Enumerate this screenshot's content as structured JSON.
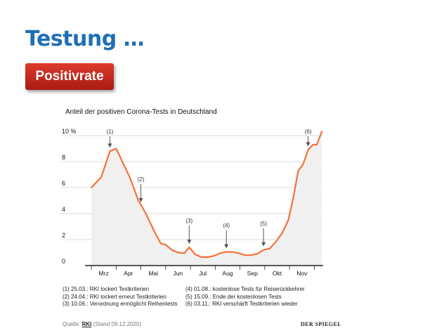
{
  "slide": {
    "title": "Testung …",
    "badge": "Positivrate"
  },
  "chart_data": {
    "type": "area",
    "title": "Anteil der positiven Corona-Tests in Deutschland",
    "xlabel": "",
    "ylabel": "",
    "unit": "%",
    "ylim": [
      0,
      10
    ],
    "xlim": [
      0,
      9.3
    ],
    "yticks": [
      0,
      2,
      4,
      6,
      8,
      10
    ],
    "ytick_labels": [
      "0",
      "2",
      "4",
      "6",
      "8",
      "10 %"
    ],
    "month_labels": [
      "Mrz",
      "Apr",
      "Mai",
      "Jun",
      "Jul",
      "Aug",
      "Sep",
      "Okt",
      "Nov"
    ],
    "grid": true,
    "colors": {
      "line": "#f4713a",
      "fill": "#f0f0f0",
      "grid": "#cfcfcf",
      "axis": "#222222",
      "arrow": "#555555"
    },
    "series": [
      {
        "values": [
          [
            0.0,
            6.0
          ],
          [
            0.4,
            6.8
          ],
          [
            0.75,
            8.8
          ],
          [
            1.0,
            9.0
          ],
          [
            1.25,
            8.0
          ],
          [
            1.55,
            6.8
          ],
          [
            1.9,
            5.0
          ],
          [
            2.2,
            4.0
          ],
          [
            2.55,
            2.6
          ],
          [
            2.8,
            1.7
          ],
          [
            3.0,
            1.6
          ],
          [
            3.25,
            1.2
          ],
          [
            3.5,
            1.0
          ],
          [
            3.75,
            0.95
          ],
          [
            3.95,
            1.4
          ],
          [
            4.2,
            0.85
          ],
          [
            4.45,
            0.65
          ],
          [
            4.7,
            0.65
          ],
          [
            4.95,
            0.75
          ],
          [
            5.2,
            0.95
          ],
          [
            5.45,
            1.05
          ],
          [
            5.7,
            1.05
          ],
          [
            5.95,
            0.95
          ],
          [
            6.2,
            0.8
          ],
          [
            6.45,
            0.8
          ],
          [
            6.7,
            0.9
          ],
          [
            6.95,
            1.2
          ],
          [
            7.2,
            1.3
          ],
          [
            7.45,
            1.85
          ],
          [
            7.7,
            2.5
          ],
          [
            7.95,
            3.5
          ],
          [
            8.15,
            5.2
          ],
          [
            8.35,
            7.3
          ],
          [
            8.55,
            7.8
          ],
          [
            8.75,
            8.9
          ],
          [
            8.95,
            9.3
          ],
          [
            9.1,
            9.3
          ],
          [
            9.3,
            10.3
          ]
        ]
      }
    ],
    "annotations": [
      {
        "id": "(1)",
        "x": 0.75,
        "y": 8.8
      },
      {
        "id": "(2)",
        "x": 2.0,
        "y": 4.6
      },
      {
        "id": "(3)",
        "x": 3.95,
        "y": 1.4
      },
      {
        "id": "(4)",
        "x": 5.45,
        "y": 1.05
      },
      {
        "id": "(5)",
        "x": 6.95,
        "y": 1.2
      },
      {
        "id": "(6)",
        "x": 8.75,
        "y": 8.9
      }
    ]
  },
  "footnotes": {
    "left": [
      "(1) 25.03.: RKI lockert Testkriterien",
      "(2) 24.04.: RKI lockert erneut Testkriterien",
      "(3) 10.06.: Verordnung ermöglicht Reihentests"
    ],
    "right": [
      "(4) 01.08.: kostenlose Tests für Reiserückkehrer",
      "(5) 15.09.: Ende der kostenlosen Tests",
      "(6) 03.11.: RKI verschärft Testkriterien wieder"
    ]
  },
  "source": {
    "prefix": "Quelle:",
    "name": "RKI",
    "date": "(Stand 09.12.2020)"
  },
  "brand": "DER SPIEGEL"
}
